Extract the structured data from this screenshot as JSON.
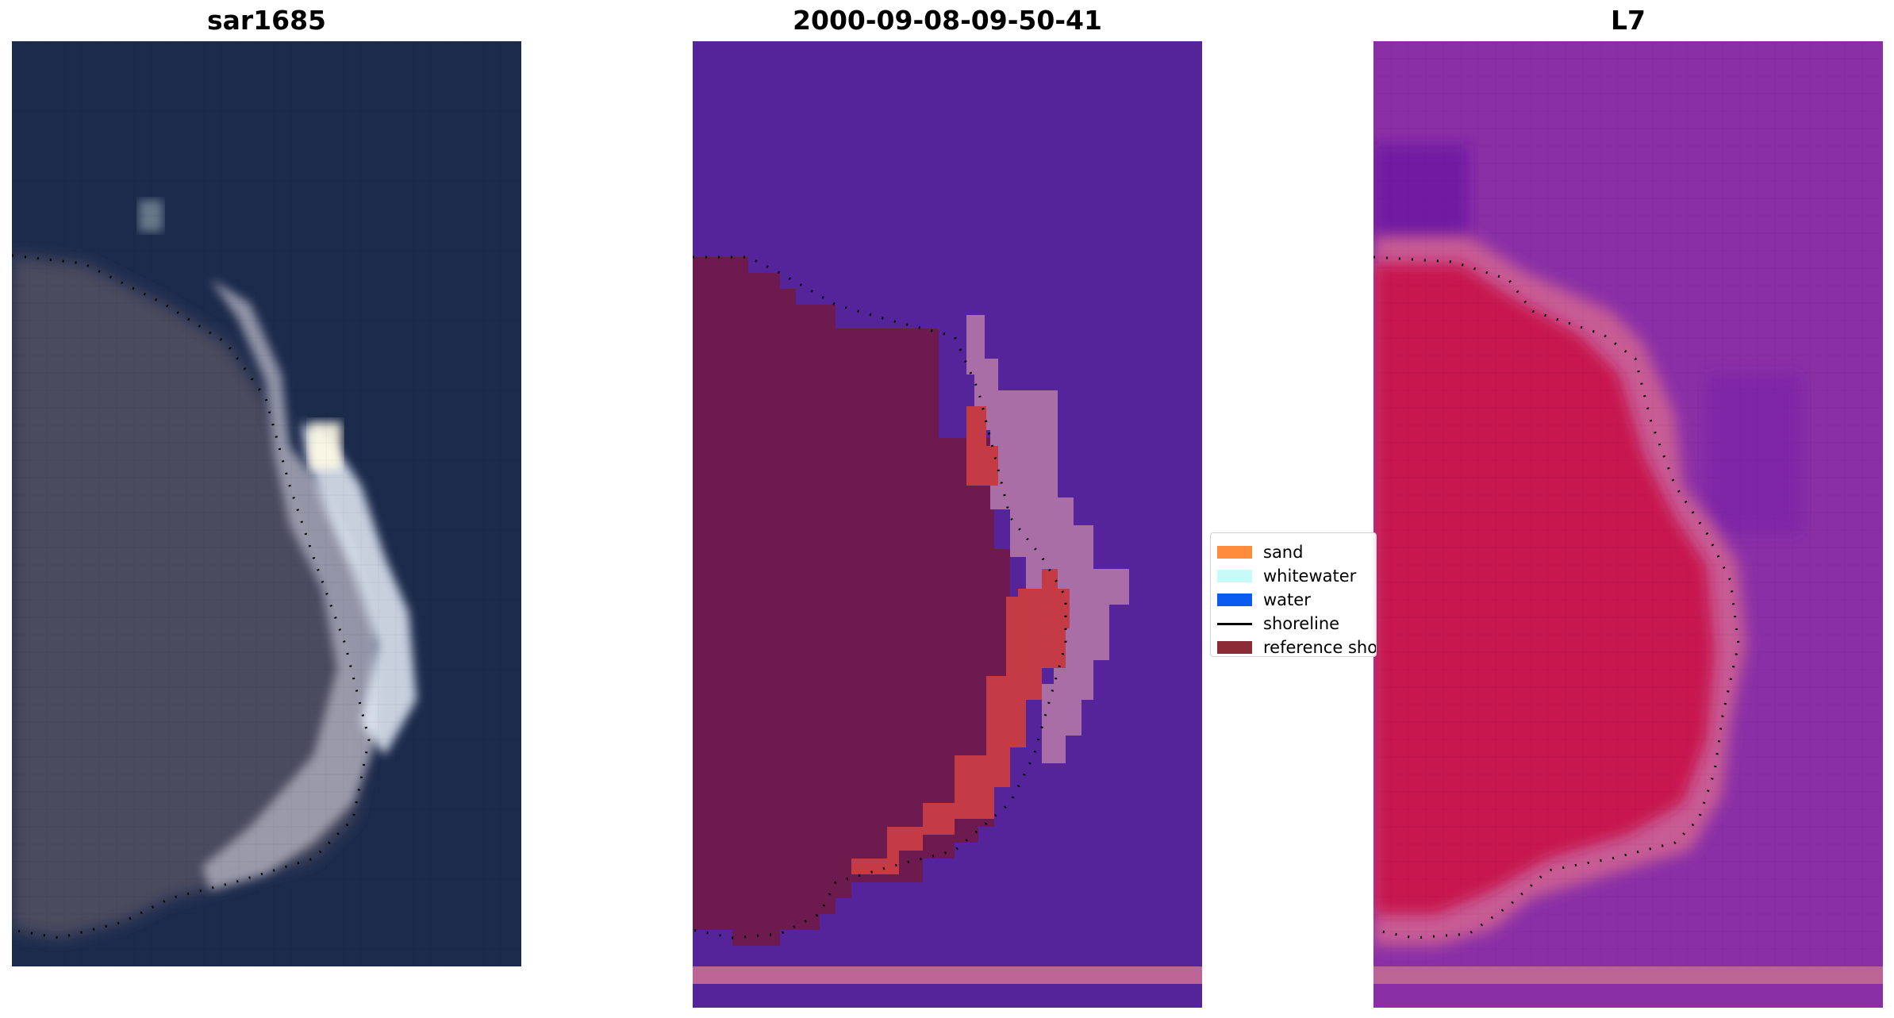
{
  "titles": {
    "rgb": "sar1685",
    "classification": "2000-09-08-09-50-41",
    "index": "L7"
  },
  "legend": {
    "items": [
      {
        "label": "sand",
        "kind": "patch",
        "color": "#ff8c3c"
      },
      {
        "label": "whitewater",
        "kind": "patch",
        "color": "#c8fafa"
      },
      {
        "label": "water",
        "kind": "patch",
        "color": "#0a5cf0"
      },
      {
        "label": "shoreline",
        "kind": "line",
        "color": "#000000"
      },
      {
        "label": "reference sho",
        "kind": "patch",
        "color": "#8b2b35"
      }
    ]
  },
  "colors": {
    "rgb_water": "#1c2a4c",
    "rgb_land": "#4c4c5e",
    "rgb_surf": "#e6edf8",
    "class_water": "#55249a",
    "class_land": "#6d1a4f",
    "class_sand": "#c43a45",
    "class_whitewater": "#a96ea6",
    "class_bottom_strip": "#bc6494",
    "index_water": "#8a2fa6",
    "index_land": "#c81450",
    "index_transition": "#c85c94"
  }
}
